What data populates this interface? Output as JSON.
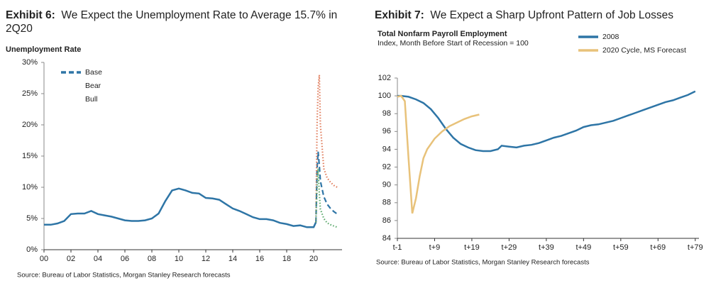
{
  "chart_data": [
    {
      "type": "line",
      "exhibit": "Exhibit 6:",
      "title": "We Expect the Unemployment Rate to Average 15.7% in 2Q20",
      "ylabel": "Unemployment Rate",
      "source": "Source: Bureau of Labor Statistics, Morgan Stanley Research forecasts",
      "x": [
        2000,
        2000.5,
        2001,
        2001.5,
        2002,
        2002.5,
        2003,
        2003.5,
        2004,
        2004.5,
        2005,
        2005.5,
        2006,
        2006.5,
        2007,
        2007.5,
        2008,
        2008.5,
        2009,
        2009.5,
        2010,
        2010.5,
        2011,
        2011.5,
        2012,
        2012.5,
        2013,
        2013.5,
        2014,
        2014.5,
        2015,
        2015.5,
        2016,
        2016.5,
        2017,
        2017.5,
        2018,
        2018.5,
        2019,
        2019.5,
        2020,
        2020.17,
        2020.25,
        2020.33,
        2020.42,
        2020.5,
        2020.75,
        2021,
        2021.25,
        2021.5,
        2021.75
      ],
      "series": [
        {
          "name": "Base",
          "color": "#2e75a6",
          "style": "dashed",
          "values": [
            4.0,
            4.0,
            4.2,
            4.6,
            5.7,
            5.8,
            5.8,
            6.2,
            5.7,
            5.5,
            5.3,
            5.0,
            4.7,
            4.6,
            4.6,
            4.7,
            5.0,
            5.8,
            7.8,
            9.5,
            9.8,
            9.5,
            9.1,
            9.0,
            8.3,
            8.2,
            8.0,
            7.3,
            6.6,
            6.2,
            5.7,
            5.2,
            4.9,
            4.9,
            4.7,
            4.3,
            4.1,
            3.8,
            3.9,
            3.6,
            3.6,
            4.4,
            13,
            15.7,
            13.5,
            11,
            8.5,
            7.3,
            6.6,
            6.1,
            5.7
          ]
        },
        {
          "name": "Bear",
          "color": "#e07b5a",
          "style": "dotted",
          "values": [
            null,
            null,
            null,
            null,
            null,
            null,
            null,
            null,
            null,
            null,
            null,
            null,
            null,
            null,
            null,
            null,
            null,
            null,
            null,
            null,
            null,
            null,
            null,
            null,
            null,
            null,
            null,
            null,
            null,
            null,
            null,
            null,
            null,
            null,
            null,
            null,
            null,
            null,
            null,
            null,
            null,
            4.4,
            20,
            26,
            28,
            20,
            13,
            11.5,
            10.8,
            10.3,
            10
          ]
        },
        {
          "name": "Bull",
          "color": "#5aa86a",
          "style": "dotted",
          "values": [
            null,
            null,
            null,
            null,
            null,
            null,
            null,
            null,
            null,
            null,
            null,
            null,
            null,
            null,
            null,
            null,
            null,
            null,
            null,
            null,
            null,
            null,
            null,
            null,
            null,
            null,
            null,
            null,
            null,
            null,
            null,
            null,
            null,
            null,
            null,
            null,
            null,
            null,
            null,
            null,
            null,
            4.4,
            10,
            13,
            9,
            6.5,
            5,
            4.3,
            4.0,
            3.8,
            3.6
          ]
        }
      ],
      "xlim": [
        2000,
        2022
      ],
      "xticks": [
        {
          "value": 2000,
          "label": "00"
        },
        {
          "value": 2002,
          "label": "02"
        },
        {
          "value": 2004,
          "label": "04"
        },
        {
          "value": 2006,
          "label": "06"
        },
        {
          "value": 2008,
          "label": "08"
        },
        {
          "value": 2010,
          "label": "10"
        },
        {
          "value": 2012,
          "label": "12"
        },
        {
          "value": 2014,
          "label": "14"
        },
        {
          "value": 2016,
          "label": "16"
        },
        {
          "value": 2018,
          "label": "18"
        },
        {
          "value": 2020,
          "label": "20"
        }
      ],
      "ylim": [
        0,
        30
      ],
      "yticks": [
        {
          "value": 0,
          "label": "0%"
        },
        {
          "value": 5,
          "label": "5%"
        },
        {
          "value": 10,
          "label": "10%"
        },
        {
          "value": 15,
          "label": "15%"
        },
        {
          "value": 20,
          "label": "20%"
        },
        {
          "value": 25,
          "label": "25%"
        },
        {
          "value": 30,
          "label": "30%"
        }
      ],
      "legend": "upper left"
    },
    {
      "type": "line",
      "exhibit": "Exhibit 7:",
      "title": "We Expect a Sharp Upfront Pattern of Job Losses",
      "subtitle": "Total Nonfarm Payroll Employment",
      "note": "Index, Month Before Start of Recession = 100",
      "source": "Source: Bureau of Labor Statistics, Morgan Stanley Research forecasts",
      "series": [
        {
          "name": "2008",
          "color": "#2e75a6",
          "style": "solid",
          "x": [
            -1,
            0,
            2,
            4,
            6,
            8,
            10,
            12,
            14,
            16,
            18,
            20,
            22,
            24,
            26,
            27,
            29,
            31,
            33,
            35,
            37,
            39,
            41,
            43,
            45,
            47,
            49,
            51,
            53,
            55,
            57,
            59,
            61,
            63,
            65,
            67,
            69,
            71,
            73,
            75,
            77,
            79
          ],
          "values": [
            100,
            100,
            99.9,
            99.6,
            99.2,
            98.5,
            97.5,
            96.3,
            95.3,
            94.6,
            94.2,
            93.9,
            93.8,
            93.8,
            94.0,
            94.4,
            94.3,
            94.2,
            94.4,
            94.5,
            94.7,
            95.0,
            95.3,
            95.5,
            95.8,
            96.1,
            96.5,
            96.7,
            96.8,
            97.0,
            97.2,
            97.5,
            97.8,
            98.1,
            98.4,
            98.7,
            99.0,
            99.3,
            99.5,
            99.8,
            100.1,
            100.5
          ]
        },
        {
          "name": "2020 Cycle, MS Forecast",
          "color": "#e8c27a",
          "style": "solid",
          "x": [
            -1,
            0,
            1,
            2,
            3,
            4,
            5,
            6,
            7,
            9,
            11,
            13,
            15,
            17,
            19,
            21
          ],
          "values": [
            99.9,
            100,
            99.4,
            93,
            86.8,
            88.5,
            91,
            93,
            94,
            95.2,
            96,
            96.6,
            97,
            97.4,
            97.7,
            97.9
          ]
        }
      ],
      "xlim": [
        -1,
        80
      ],
      "xticks": [
        {
          "value": -1,
          "label": "t-1"
        },
        {
          "value": 9,
          "label": "t+9"
        },
        {
          "value": 19,
          "label": "t+19"
        },
        {
          "value": 29,
          "label": "t+29"
        },
        {
          "value": 39,
          "label": "t+39"
        },
        {
          "value": 49,
          "label": "t+49"
        },
        {
          "value": 59,
          "label": "t+59"
        },
        {
          "value": 69,
          "label": "t+69"
        },
        {
          "value": 79,
          "label": "t+79"
        }
      ],
      "ylim": [
        84,
        102
      ],
      "yticks": [
        84,
        86,
        88,
        90,
        92,
        94,
        96,
        98,
        100,
        102
      ],
      "legend": "upper right"
    }
  ]
}
